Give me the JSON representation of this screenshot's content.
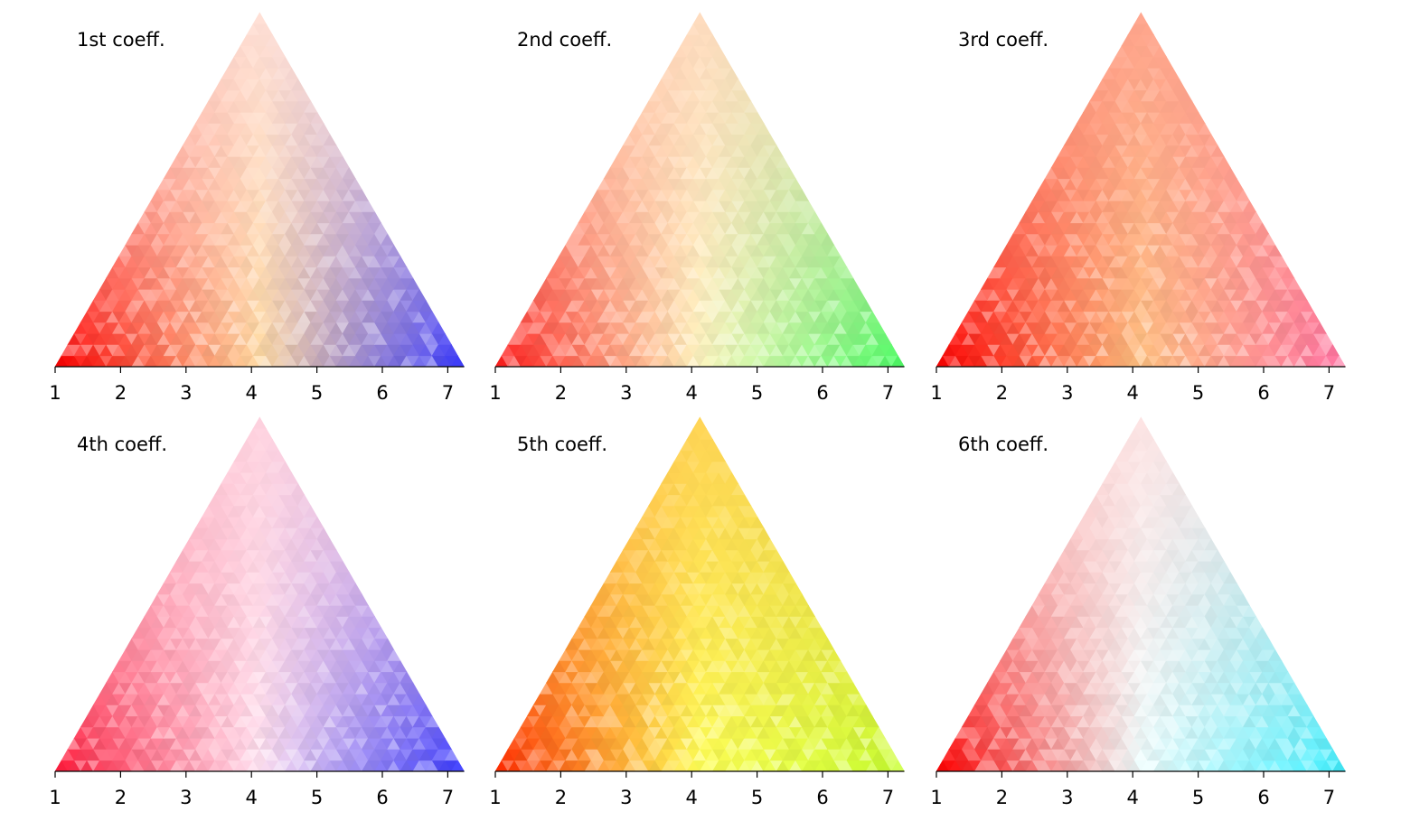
{
  "chart_data": [
    {
      "type": "heatmap",
      "title": "1st coeff.",
      "x_ticks": [
        1,
        2,
        3,
        4,
        5,
        6,
        7
      ],
      "xlim": [
        1,
        7.25
      ],
      "levels": 32,
      "grid": false,
      "palette": {
        "left": "#ff0000",
        "center": "#ffd9a0",
        "right": "#3a3aff",
        "mid_top": "#ffe0e0"
      }
    },
    {
      "type": "heatmap",
      "title": "2nd coeff.",
      "x_ticks": [
        1,
        2,
        3,
        4,
        5,
        6,
        7
      ],
      "xlim": [
        1,
        7.25
      ],
      "levels": 32,
      "grid": false,
      "palette": {
        "left": "#ff1a1a",
        "center": "#fff6c0",
        "right": "#4dff66",
        "mid_top": "#ffd7bf"
      }
    },
    {
      "type": "heatmap",
      "title": "3rd coeff.",
      "x_ticks": [
        1,
        2,
        3,
        4,
        5,
        6,
        7
      ],
      "xlim": [
        1,
        7.25
      ],
      "levels": 32,
      "grid": false,
      "palette": {
        "left": "#ff0000",
        "center": "#ffc080",
        "right": "#ff6fa0",
        "mid_top": "#ffa08f"
      }
    },
    {
      "type": "heatmap",
      "title": "4th coeff.",
      "x_ticks": [
        1,
        2,
        3,
        4,
        5,
        6,
        7
      ],
      "xlim": [
        1,
        7.25
      ],
      "levels": 32,
      "grid": false,
      "palette": {
        "left": "#ff1a3a",
        "center": "#ffe0f0",
        "right": "#3a3aff",
        "mid_top": "#ffd0dc"
      }
    },
    {
      "type": "heatmap",
      "title": "5th coeff.",
      "x_ticks": [
        1,
        2,
        3,
        4,
        5,
        6,
        7
      ],
      "xlim": [
        1,
        7.25
      ],
      "levels": 32,
      "grid": false,
      "palette": {
        "left": "#ff2a00",
        "center": "#ffff55",
        "right": "#c8ff30",
        "mid_top": "#ffcc55"
      }
    },
    {
      "type": "heatmap",
      "title": "6th coeff.",
      "x_ticks": [
        1,
        2,
        3,
        4,
        5,
        6,
        7
      ],
      "xlim": [
        1,
        7.25
      ],
      "levels": 32,
      "grid": false,
      "palette": {
        "left": "#ff0000",
        "center": "#f0ffff",
        "right": "#40f0ff",
        "mid_top": "#ffdede"
      }
    }
  ]
}
